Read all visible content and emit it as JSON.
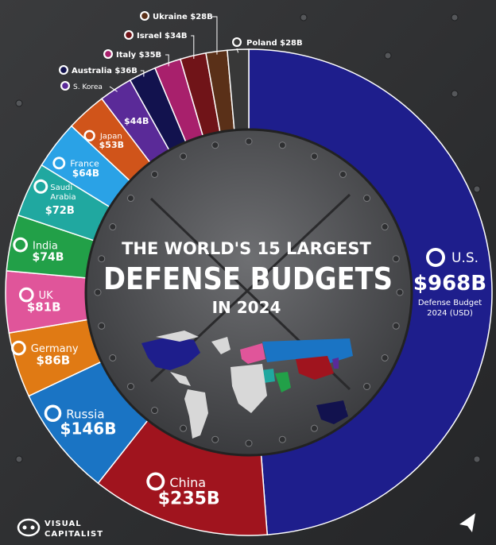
{
  "chart_data": {
    "type": "pie",
    "variant": "donut",
    "title_line1": "THE WORLD'S 15 LARGEST",
    "title_line2": "DEFENSE BUDGETS",
    "title_line3": "IN 2024",
    "us_note_line1": "Defense Budget",
    "us_note_line2": "2024 (USD)",
    "slices": [
      {
        "country": "U.S.",
        "value": 968,
        "label": "$968B",
        "color": "#1e1e8c"
      },
      {
        "country": "China",
        "value": 235,
        "label": "$235B",
        "color": "#a0141e"
      },
      {
        "country": "Russia",
        "value": 146,
        "label": "$146B",
        "color": "#1a74c4"
      },
      {
        "country": "Germany",
        "value": 86,
        "label": "$86B",
        "color": "#e07a14"
      },
      {
        "country": "UK",
        "value": 81,
        "label": "$81B",
        "color": "#e0559a"
      },
      {
        "country": "India",
        "value": 74,
        "label": "$74B",
        "color": "#22a048"
      },
      {
        "country": "Saudi Arabia",
        "value": 72,
        "label": "$72B",
        "color": "#20a8a0"
      },
      {
        "country": "France",
        "value": 64,
        "label": "$64B",
        "color": "#2aa2e6"
      },
      {
        "country": "Japan",
        "value": 53,
        "label": "$53B",
        "color": "#d0541a"
      },
      {
        "country": "S. Korea",
        "value": 44,
        "label": "$44B",
        "color": "#5a2a98"
      },
      {
        "country": "Australia",
        "value": 36,
        "label": "$36B",
        "color": "#12124e"
      },
      {
        "country": "Italy",
        "value": 35,
        "label": "$35B",
        "color": "#a8206c"
      },
      {
        "country": "Israel",
        "value": 34,
        "label": "$34B",
        "color": "#701418"
      },
      {
        "country": "Ukraine",
        "value": 28,
        "label": "$28B",
        "color": "#5a3018"
      },
      {
        "country": "Poland",
        "value": 28,
        "label": "$28B",
        "color": "#383838"
      }
    ]
  },
  "branding": {
    "logo_line1": "VISUAL",
    "logo_line2": "CAPITALIST"
  },
  "icons": {
    "flag": "flag-icon",
    "logo": "visual-capitalist-logo-icon",
    "corner": "paper-plane-icon"
  }
}
